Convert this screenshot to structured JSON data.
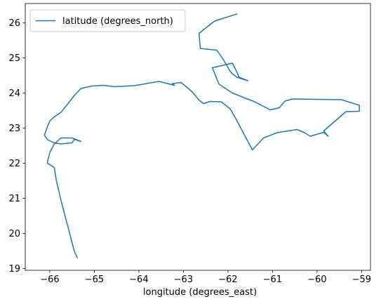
{
  "chart_data": {
    "type": "line",
    "title": "",
    "xlabel": "longitude (degrees_east)",
    "ylabel": "",
    "xlim": [
      -66.55,
      -58.8
    ],
    "ylim": [
      18.95,
      26.55
    ],
    "xticks": [
      -66,
      -65,
      -64,
      -63,
      -62,
      -61,
      -60,
      -59
    ],
    "xtick_labels": [
      "−66",
      "−65",
      "−64",
      "−63",
      "−62",
      "−61",
      "−60",
      "−59"
    ],
    "yticks": [
      19,
      20,
      21,
      22,
      23,
      24,
      25,
      26
    ],
    "ytick_labels": [
      "19",
      "20",
      "21",
      "22",
      "23",
      "24",
      "25",
      "26"
    ],
    "grid": false,
    "legend_position": "top-left",
    "colors": {
      "series": "#1f77b4",
      "axes": "#000000",
      "legend_border": "#cccccc"
    },
    "series": [
      {
        "name": "latitude (degrees_north)",
        "x": [
          -61.8,
          -62.3,
          -62.65,
          -62.62,
          -62.25,
          -62.1,
          -61.95,
          -61.9,
          -61.8,
          -61.55,
          -61.75,
          -61.8,
          -61.9,
          -62.35,
          -62.2,
          -61.9,
          -61.4,
          -61.05,
          -60.85,
          -60.72,
          -60.55,
          -59.45,
          -59.05,
          -59.05,
          -59.35,
          -59.85,
          -59.75,
          -59.85,
          -60.15,
          -60.3,
          -60.45,
          -60.9,
          -61.2,
          -61.35,
          -61.45,
          -61.65,
          -61.8,
          -61.95,
          -62.15,
          -62.4,
          -62.55,
          -62.65,
          -62.8,
          -63.05,
          -63.25,
          -63.2,
          -63.55,
          -64.1,
          -64.55,
          -64.8,
          -65.05,
          -65.3,
          -65.45,
          -65.6,
          -65.75,
          -65.9,
          -66.0,
          -66.05,
          -66.12,
          -66.05,
          -65.9,
          -65.75,
          -65.5,
          -65.45,
          -65.3,
          -65.5,
          -65.75,
          -65.9,
          -66.0,
          -66.05,
          -66.05,
          -65.9,
          -65.85,
          -65.75,
          -65.6,
          -65.45,
          -65.38
        ],
        "y": [
          26.25,
          26.05,
          25.7,
          25.27,
          25.22,
          24.95,
          24.62,
          24.55,
          24.45,
          24.35,
          24.45,
          24.6,
          24.85,
          24.72,
          24.25,
          24.0,
          23.75,
          23.52,
          23.58,
          23.77,
          23.83,
          23.81,
          23.65,
          23.48,
          23.47,
          22.92,
          22.77,
          22.88,
          22.77,
          22.88,
          22.96,
          22.87,
          22.72,
          22.52,
          22.38,
          22.85,
          23.22,
          23.55,
          23.75,
          23.76,
          23.7,
          23.8,
          24.03,
          24.3,
          24.27,
          24.22,
          24.33,
          24.21,
          24.18,
          24.22,
          24.2,
          24.13,
          23.93,
          23.68,
          23.45,
          23.32,
          23.2,
          23.05,
          22.8,
          22.67,
          22.58,
          22.55,
          22.58,
          22.68,
          22.62,
          22.72,
          22.72,
          22.55,
          22.3,
          22.05,
          22.0,
          21.88,
          21.5,
          20.95,
          20.23,
          19.5,
          19.3
        ]
      }
    ]
  }
}
